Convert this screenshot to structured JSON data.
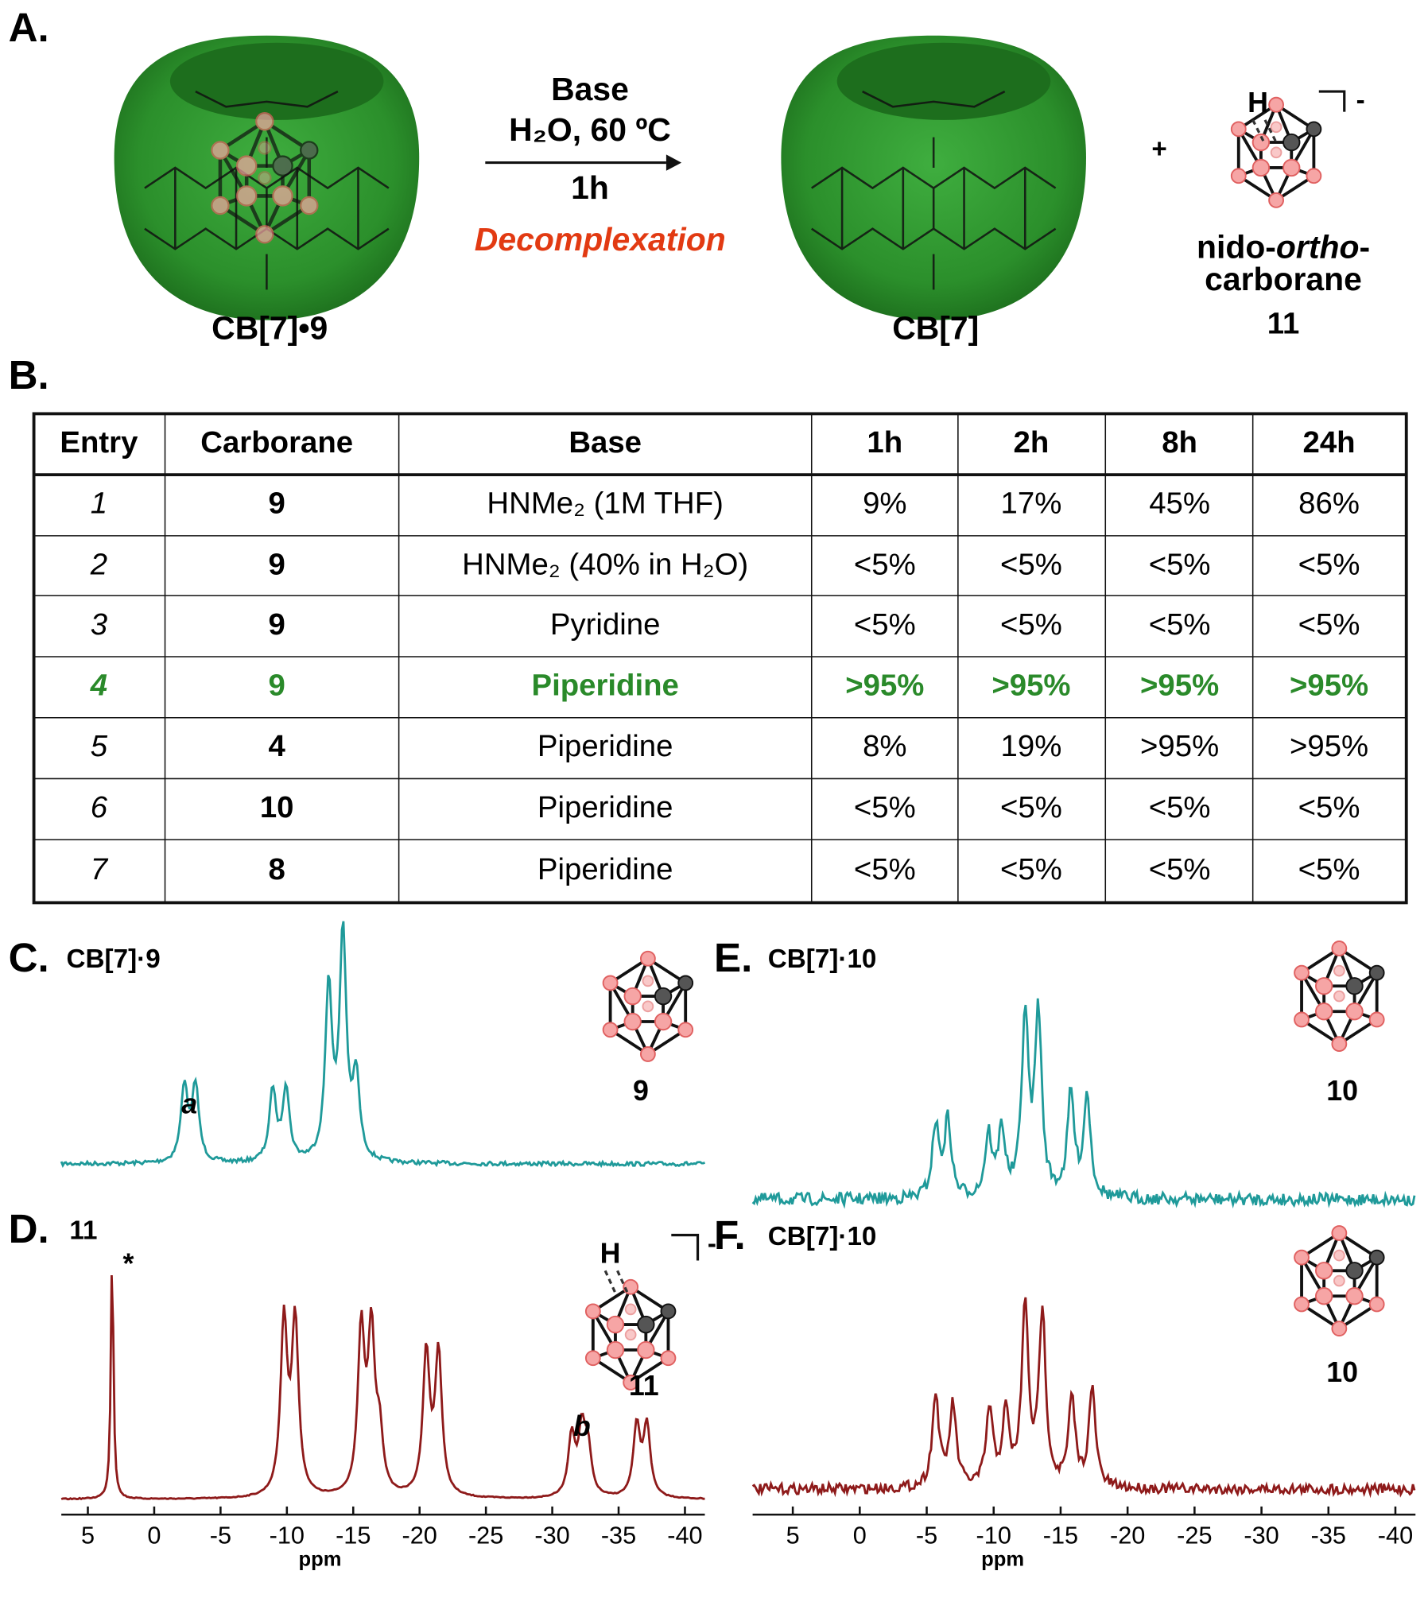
{
  "figure": {
    "panel_labels": [
      "A.",
      "B."
    ],
    "scheme": {
      "reagent": "Base",
      "conditions": "H₂O, 60 ºC",
      "time": "1h",
      "process": "Decomplexation",
      "reactant": "CB[7]•9",
      "product": "CB[7]",
      "plus": "+",
      "hydrogen": "H",
      "charge": "-",
      "byproduct_name": [
        "nido-",
        "ortho",
        "-",
        "carborane"
      ],
      "byproduct_number": "11"
    },
    "table": {
      "header": [
        "Entry",
        "Carborane",
        "Base",
        "1h",
        "2h",
        "8h",
        "24h"
      ],
      "rows": [
        [
          "1",
          "9",
          "HNMe₂ (1M THF)",
          "9%",
          "17%",
          "45%",
          "86%"
        ],
        [
          "2",
          "9",
          "HNMe₂ (40% in H₂O)",
          "<5%",
          "<5%",
          "<5%",
          "<5%"
        ],
        [
          "3",
          "9",
          "Pyridine",
          "<5%",
          "<5%",
          "<5%",
          "<5%"
        ],
        [
          "4",
          "9",
          "Piperidine",
          ">95%",
          ">95%",
          ">95%",
          ">95%"
        ],
        [
          "5",
          "4",
          "Piperidine",
          "8%",
          "19%",
          ">95%",
          ">95%"
        ],
        [
          "6",
          "10",
          "Piperidine",
          "<5%",
          "<5%",
          "<5%",
          "<5%"
        ],
        [
          "7",
          "8",
          "Piperidine",
          "<5%",
          "<5%",
          "<5%",
          "<5%"
        ]
      ],
      "highlight_row": 3,
      "highlight_color": "#2a8a2a"
    },
    "spectra": [
      {
        "panel": "C.",
        "title": "CB[7]·9",
        "compound": "9",
        "peak_label": "a",
        "color": "#1f9a9a"
      },
      {
        "panel": "D.",
        "title": "11",
        "compound": "11",
        "peak_label": "b",
        "marker": "*",
        "hydrogen": "H",
        "charge": "-",
        "color": "#8e1a1a"
      },
      {
        "panel": "E.",
        "title": "CB[7]·10",
        "compound": "10",
        "color": "#1f9a9a"
      },
      {
        "panel": "F.",
        "title": "CB[7]·10",
        "compound": "10",
        "color": "#8e1a1a"
      }
    ],
    "axes": [
      {
        "xlim": [
          7,
          -41.5
        ],
        "xticks": [
          5,
          0,
          -5,
          -10,
          -15,
          -20,
          -25,
          -30,
          -35,
          -40
        ],
        "xlabel": "ppm"
      },
      {
        "xlim": [
          8,
          -41.5
        ],
        "xticks": [
          5,
          0,
          -5,
          -10,
          -15,
          -20,
          -25,
          -30,
          -35,
          -40
        ],
        "xlabel": "ppm"
      }
    ]
  }
}
